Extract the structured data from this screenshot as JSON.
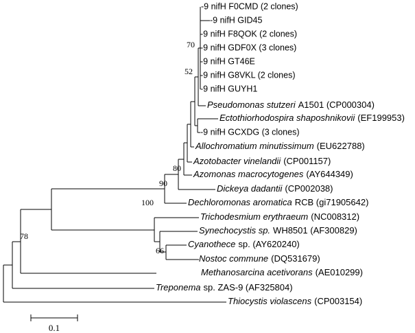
{
  "leaves": [
    {
      "text": "-9 nifH F0CMD (2 clones)"
    },
    {
      "text": "-9 nifH GID45"
    },
    {
      "text": "-9 nifH F8QOK (2 clones)"
    },
    {
      "text": "-9 nifH GDF0X (3 clones)"
    },
    {
      "text": "-9 nifH GT46E"
    },
    {
      "text": "-9 nifH G8VKL (2 clones)"
    },
    {
      "text": "-9 nifH GUYH1"
    },
    {
      "italic": "Pseudomonas stutzeri",
      "text": "A1501 (CP000304)"
    },
    {
      "italic": "Ectothiorhodospira shaposhnikovii",
      "text": "(EF199953)"
    },
    {
      "text": "-9 nifH GCXDG (3 clones)"
    },
    {
      "italic": "Allochromatium minutissimum",
      "text": "(EU622788)"
    },
    {
      "italic": "Azotobacter vinelandii",
      "text": "(CP001157)"
    },
    {
      "italic": "Azomonas macrocytogenes",
      "text": "(AY644349)"
    },
    {
      "italic": "Dickeya dadantii",
      "text": "(CP002038)"
    },
    {
      "italic": "Dechloromonas aromatica",
      "text": "RCB (gi71905642)"
    },
    {
      "italic": "Trichodesmium erythraeum",
      "text": "(NC008312)"
    },
    {
      "italic": "Synechocystis sp.",
      "text": "WH8501 (AF300829)"
    },
    {
      "italic": "Cyanothece",
      "text": "sp. (AY620240)"
    },
    {
      "italic": "Nostoc commune",
      "text": "(DQ531679)"
    },
    {
      "italic": "Methanosarcina acetivorans",
      "text": "(AE010299)"
    },
    {
      "italic": "Treponema",
      "text": "sp. ZAS-9 (AF325804)"
    },
    {
      "italic": "Thiocystis violascens",
      "text": "(CP003154)"
    }
  ],
  "bootstrap": [
    "70",
    "52",
    "80",
    "90",
    "100",
    "66",
    "78"
  ],
  "scale_bar": {
    "label": "0.1"
  }
}
